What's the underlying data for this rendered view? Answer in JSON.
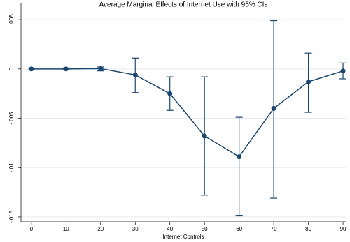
{
  "chart_data": {
    "type": "errorline",
    "title": "Average Marginal Effects of Internet Use with 95% CIs",
    "x_label": "Internet Controls",
    "x": [
      0,
      10,
      20,
      30,
      40,
      50,
      60,
      70,
      80,
      90
    ],
    "series": [
      {
        "color": "#1a476f",
        "values": [
          0,
          0,
          3e-05,
          -0.0006,
          -0.0025,
          -0.0068,
          -0.0089,
          -0.004,
          -0.0013,
          -0.0002
        ],
        "lower": [
          -0.0001,
          -0.0001,
          -0.0002,
          -0.0024,
          -0.0042,
          -0.0128,
          -0.0149,
          -0.0131,
          -0.0044,
          -0.001
        ],
        "upper": [
          0.0001,
          0.0001,
          0.0002,
          0.0011,
          -0.0008,
          -0.0008,
          -0.0049,
          0.0049,
          0.0016,
          0.0006
        ]
      }
    ],
    "xlim": [
      -3,
      91
    ],
    "xticks": [
      0,
      10,
      20,
      30,
      40,
      50,
      60,
      70,
      80,
      90
    ],
    "ylim": [
      -0.0155,
      0.006
    ],
    "yticks": [
      {
        "value": 0.005,
        "label": ".005"
      },
      0,
      {
        "value": -0.005,
        "label": "-.005"
      },
      {
        "value": -0.01,
        "label": "-.01"
      },
      {
        "value": -0.015,
        "label": "-.015"
      }
    ],
    "grid": true
  }
}
